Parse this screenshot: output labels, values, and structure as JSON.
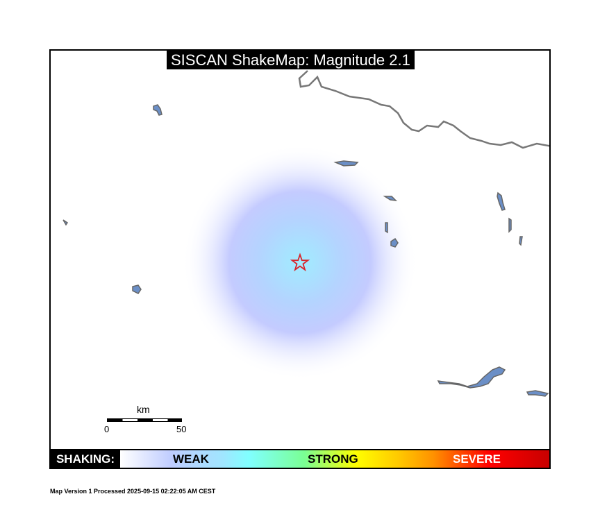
{
  "title": "SISCAN ShakeMap: Magnitude 2.1",
  "map": {
    "epicenter_icon": "star-icon",
    "epicenter_color": "#d9232a",
    "intensity_center_color": "#a0e6ff",
    "intensity_outer_color": "#bfccff",
    "border_color": "#777777",
    "lake_color": "#6b8fc7"
  },
  "scale_bar": {
    "unit": "km",
    "start": "0",
    "end": "50"
  },
  "legend": {
    "label": "SHAKING:",
    "weak": "WEAK",
    "strong": "STRONG",
    "severe": "SEVERE"
  },
  "footer": "Map Version 1 Processed 2025-09-15 02:22:05 AM CEST"
}
